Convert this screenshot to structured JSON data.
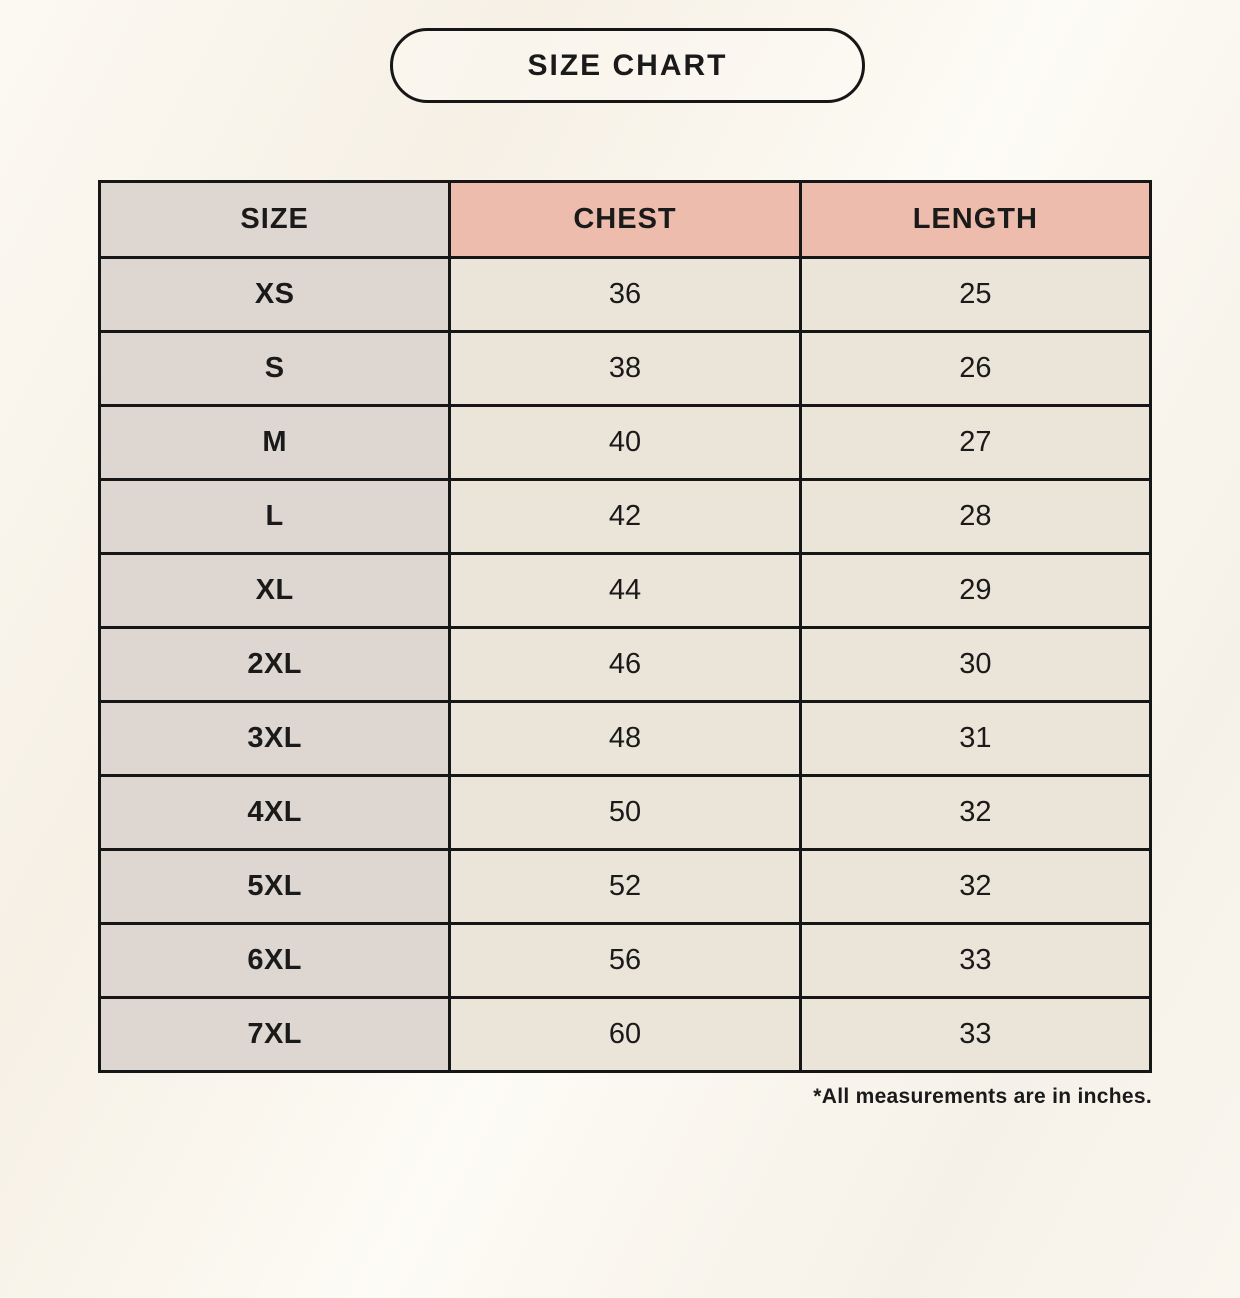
{
  "title_pill": {
    "label": "SIZE CHART"
  },
  "footnote": "*All measurements are in inches.",
  "chart_data": {
    "type": "table",
    "title": "SIZE CHART",
    "columns": [
      "SIZE",
      "CHEST",
      "LENGTH"
    ],
    "rows": [
      [
        "XS",
        "36",
        "25"
      ],
      [
        "S",
        "38",
        "26"
      ],
      [
        "M",
        "40",
        "27"
      ],
      [
        "L",
        "42",
        "28"
      ],
      [
        "XL",
        "44",
        "29"
      ],
      [
        "2XL",
        "46",
        "30"
      ],
      [
        "3XL",
        "48",
        "31"
      ],
      [
        "4XL",
        "50",
        "32"
      ],
      [
        "5XL",
        "52",
        "32"
      ],
      [
        "6XL",
        "56",
        "33"
      ],
      [
        "7XL",
        "60",
        "33"
      ]
    ],
    "footnote": "*All measurements are in inches."
  },
  "colors": {
    "background": "#faf6ef",
    "header_accent": "#edbcac",
    "size_column": "#ddd6d1",
    "cell": "#ebe4d9",
    "border": "#1a1a1a",
    "text": "#1a1a1a"
  }
}
